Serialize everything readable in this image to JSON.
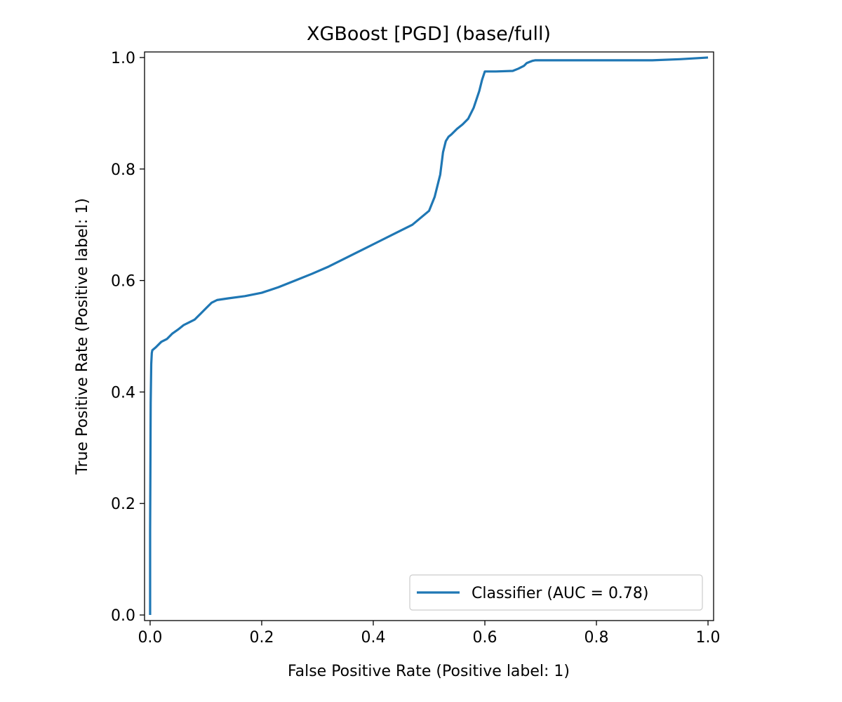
{
  "chart_data": {
    "type": "line",
    "title": "XGBoost [PGD] (base/full)",
    "xlabel": "False Positive Rate (Positive label: 1)",
    "ylabel": "True Positive Rate (Positive label: 1)",
    "xlim": [
      -0.01,
      1.01
    ],
    "ylim": [
      -0.01,
      1.01
    ],
    "xticks": [
      0.0,
      0.2,
      0.4,
      0.6,
      0.8,
      1.0
    ],
    "xtick_labels": [
      "0.0",
      "0.2",
      "0.4",
      "0.6",
      "0.8",
      "1.0"
    ],
    "yticks": [
      0.0,
      0.2,
      0.4,
      0.6,
      0.8,
      1.0
    ],
    "ytick_labels": [
      "0.0",
      "0.2",
      "0.4",
      "0.6",
      "0.8",
      "1.0"
    ],
    "grid": false,
    "legend_position": "lower-right",
    "series": [
      {
        "name": "Classifier (AUC = 0.78)",
        "color": "#1f77b4",
        "x": [
          0.0,
          0.0,
          0.001,
          0.002,
          0.003,
          0.004,
          0.01,
          0.02,
          0.03,
          0.04,
          0.05,
          0.06,
          0.07,
          0.08,
          0.09,
          0.1,
          0.11,
          0.12,
          0.14,
          0.17,
          0.2,
          0.23,
          0.26,
          0.29,
          0.32,
          0.35,
          0.38,
          0.41,
          0.44,
          0.47,
          0.5,
          0.51,
          0.52,
          0.525,
          0.53,
          0.535,
          0.54,
          0.55,
          0.56,
          0.57,
          0.58,
          0.59,
          0.595,
          0.6,
          0.605,
          0.607,
          0.62,
          0.65,
          0.66,
          0.67,
          0.675,
          0.68,
          0.685,
          0.69,
          0.7,
          0.75,
          0.8,
          0.85,
          0.9,
          0.95,
          1.0
        ],
        "y": [
          0.0,
          0.15,
          0.38,
          0.45,
          0.47,
          0.475,
          0.48,
          0.49,
          0.495,
          0.505,
          0.512,
          0.52,
          0.525,
          0.53,
          0.54,
          0.55,
          0.56,
          0.565,
          0.568,
          0.572,
          0.578,
          0.588,
          0.6,
          0.612,
          0.625,
          0.64,
          0.655,
          0.67,
          0.685,
          0.7,
          0.725,
          0.75,
          0.79,
          0.83,
          0.85,
          0.858,
          0.862,
          0.872,
          0.88,
          0.89,
          0.91,
          0.94,
          0.96,
          0.975,
          0.975,
          0.975,
          0.975,
          0.976,
          0.98,
          0.985,
          0.99,
          0.992,
          0.994,
          0.995,
          0.995,
          0.995,
          0.995,
          0.995,
          0.995,
          0.997,
          1.0
        ]
      }
    ]
  }
}
